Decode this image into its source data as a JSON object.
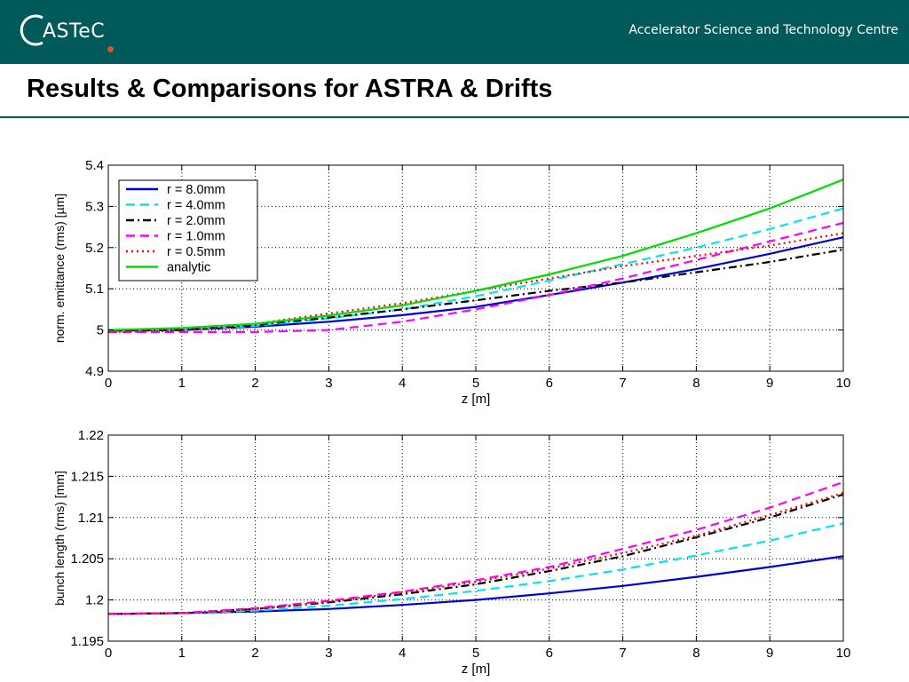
{
  "header": {
    "logo_text": "ASTeC",
    "organization": "Accelerator Science and Technology Centre"
  },
  "slide": {
    "title": "Results & Comparisons for ASTRA & Drifts"
  },
  "colors": {
    "header_bg": "#005a5a",
    "logo_dot": "#e0502c"
  },
  "chart_data": [
    {
      "type": "line",
      "xlabel": "z [m]",
      "ylabel": "norm. emittance (rms) [µm]",
      "xlim": [
        0,
        10
      ],
      "ylim": [
        4.9,
        5.4
      ],
      "xticks": [
        "0",
        "1",
        "2",
        "3",
        "4",
        "5",
        "6",
        "7",
        "8",
        "9",
        "10"
      ],
      "yticks": [
        "4.9",
        "5",
        "5.1",
        "5.2",
        "5.3",
        "5.4"
      ],
      "grid": true,
      "legend": "top-left",
      "x": [
        0,
        1,
        2,
        3,
        4,
        5,
        6,
        7,
        8,
        9,
        10
      ],
      "series": [
        {
          "name": "r = 8.0mm",
          "color": "#0000cc",
          "dash": "solid",
          "values": [
            4.998,
            5.0,
            5.008,
            5.02,
            5.036,
            5.056,
            5.085,
            5.115,
            5.148,
            5.185,
            5.225
          ]
        },
        {
          "name": "r = 4.0mm",
          "color": "#00e5ee",
          "dash": "dashed",
          "values": [
            4.998,
            5.0,
            5.01,
            5.028,
            5.05,
            5.082,
            5.12,
            5.16,
            5.2,
            5.245,
            5.295
          ]
        },
        {
          "name": "r = 2.0mm",
          "color": "#000000",
          "dash": "dashdot",
          "values": [
            4.998,
            5.0,
            5.012,
            5.03,
            5.05,
            5.072,
            5.095,
            5.115,
            5.14,
            5.165,
            5.195
          ]
        },
        {
          "name": "r = 1.0mm",
          "color": "#ff00ff",
          "dash": "dashed",
          "values": [
            4.995,
            4.995,
            4.995,
            5.0,
            5.02,
            5.05,
            5.085,
            5.125,
            5.17,
            5.215,
            5.26
          ]
        },
        {
          "name": "r = 0.5mm",
          "color": "#ff0000",
          "dash": "dotted",
          "values": [
            4.995,
            4.998,
            5.015,
            5.04,
            5.065,
            5.095,
            5.125,
            5.155,
            5.18,
            5.205,
            5.235
          ]
        },
        {
          "name": "analytic",
          "color": "#00dd00",
          "dash": "solid",
          "values": [
            5.0,
            5.005,
            5.015,
            5.035,
            5.06,
            5.095,
            5.135,
            5.18,
            5.235,
            5.295,
            5.365
          ]
        }
      ]
    },
    {
      "type": "line",
      "xlabel": "z [m]",
      "ylabel": "bunch length (rms) [mm]",
      "xlim": [
        0,
        10
      ],
      "ylim": [
        1.195,
        1.22
      ],
      "xticks": [
        "0",
        "1",
        "2",
        "3",
        "4",
        "5",
        "6",
        "7",
        "8",
        "9",
        "10"
      ],
      "yticks": [
        "1.195",
        "1.2",
        "1.205",
        "1.21",
        "1.215",
        "1.22"
      ],
      "grid": true,
      "x": [
        0,
        1,
        2,
        3,
        4,
        5,
        6,
        7,
        8,
        9,
        10
      ],
      "series": [
        {
          "color": "#0000cc",
          "dash": "solid",
          "values": [
            1.1983,
            1.1984,
            1.1986,
            1.1989,
            1.1994,
            1.2,
            1.2008,
            1.2017,
            1.2028,
            1.204,
            1.2053
          ]
        },
        {
          "color": "#00e5ee",
          "dash": "dashed",
          "values": [
            1.1983,
            1.1984,
            1.1987,
            1.1993,
            1.2001,
            1.2011,
            1.2023,
            1.2037,
            1.2054,
            1.2072,
            1.2093
          ]
        },
        {
          "color": "#000000",
          "dash": "dashdot",
          "values": [
            1.1983,
            1.1984,
            1.1989,
            1.1997,
            1.2007,
            1.2019,
            1.2035,
            1.2053,
            1.2076,
            1.21,
            1.2128
          ]
        },
        {
          "color": "#ff00ff",
          "dash": "dashed",
          "values": [
            1.1983,
            1.1984,
            1.199,
            1.1999,
            1.201,
            1.2024,
            1.204,
            1.2062,
            1.2085,
            1.2112,
            1.2143
          ]
        },
        {
          "color": "#ff0000",
          "dash": "dotted",
          "values": [
            1.1983,
            1.1984,
            1.1989,
            1.1998,
            1.2009,
            1.2022,
            1.2038,
            1.2057,
            1.2078,
            1.2103,
            1.213
          ]
        }
      ]
    }
  ]
}
